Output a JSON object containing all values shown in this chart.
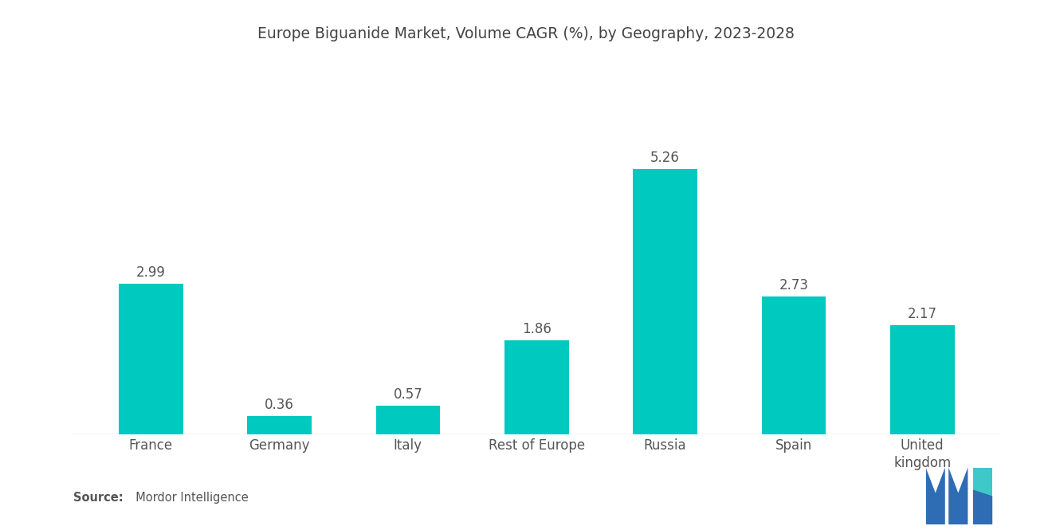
{
  "title": "Europe Biguanide Market, Volume CAGR (%), by Geography, 2023-2028",
  "categories": [
    "France",
    "Germany",
    "Italy",
    "Rest of Europe",
    "Russia",
    "Spain",
    "United\nkingdom"
  ],
  "values": [
    2.99,
    0.36,
    0.57,
    1.86,
    5.26,
    2.73,
    2.17
  ],
  "bar_color": "#00C9C0",
  "background_color": "#ffffff",
  "title_fontsize": 13.5,
  "label_fontsize": 12,
  "value_fontsize": 12,
  "source_bold": "Source:",
  "source_normal": "  Mordor Intelligence",
  "ylim": [
    0,
    6.5
  ],
  "bar_width": 0.5,
  "logo_blue": "#2e6db4",
  "logo_teal": "#3ec8c8"
}
